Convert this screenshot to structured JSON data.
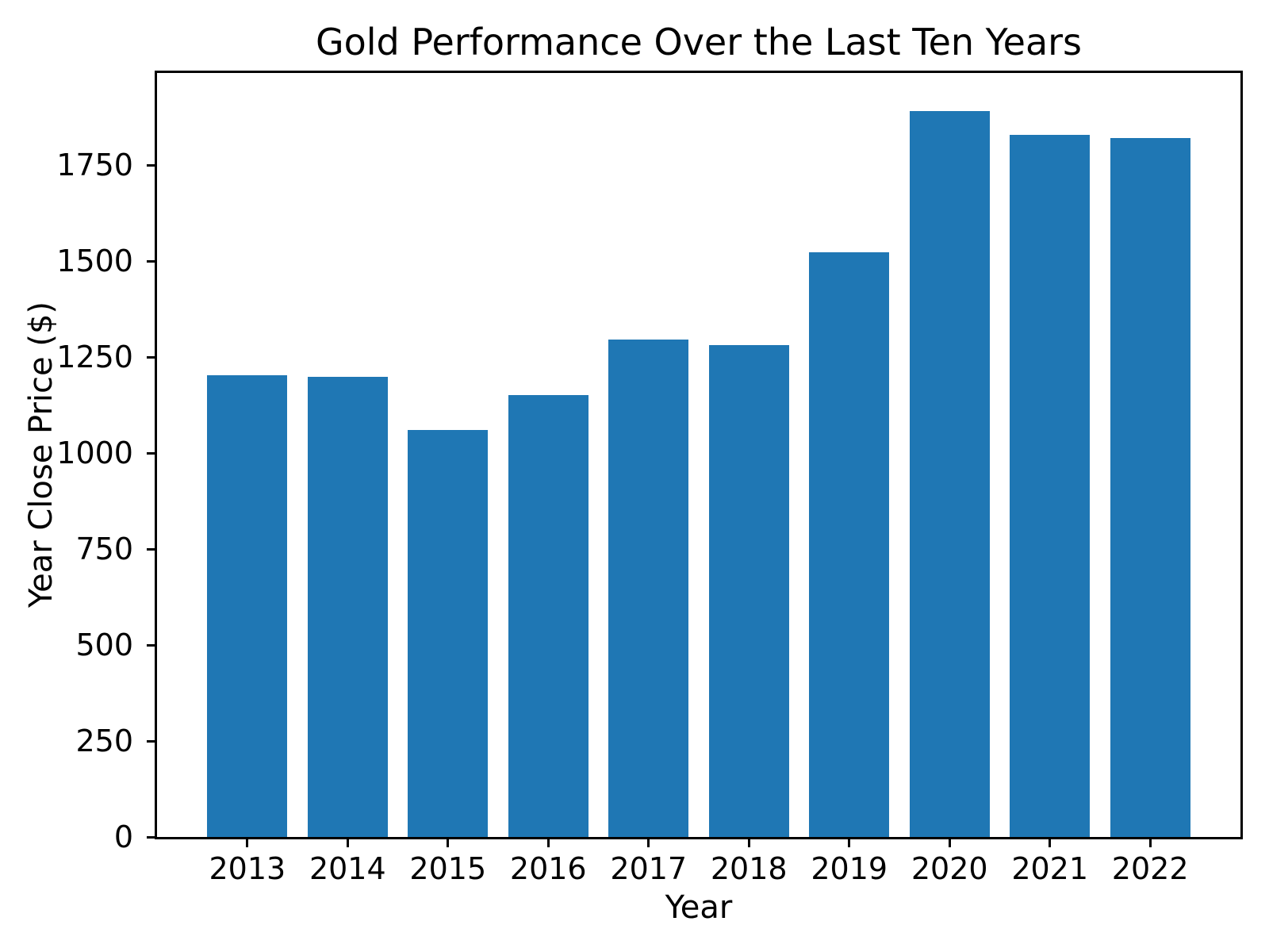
{
  "chart_data": {
    "type": "bar",
    "title": "Gold Performance Over the Last Ten Years",
    "xlabel": "Year",
    "ylabel": "Year Close Price ($)",
    "categories": [
      "2013",
      "2014",
      "2015",
      "2016",
      "2017",
      "2018",
      "2019",
      "2020",
      "2021",
      "2022"
    ],
    "values": [
      1202,
      1199,
      1060,
      1151,
      1296,
      1281,
      1523,
      1891,
      1829,
      1820
    ],
    "yticks": [
      0,
      250,
      500,
      750,
      1000,
      1250,
      1500,
      1750
    ],
    "ylim": [
      0,
      1990
    ],
    "bar_width_fraction": 0.8,
    "bar_color": "#1f77b4",
    "axis_color": "#000000",
    "background_color": "#ffffff",
    "grid": false,
    "legend": "none"
  }
}
